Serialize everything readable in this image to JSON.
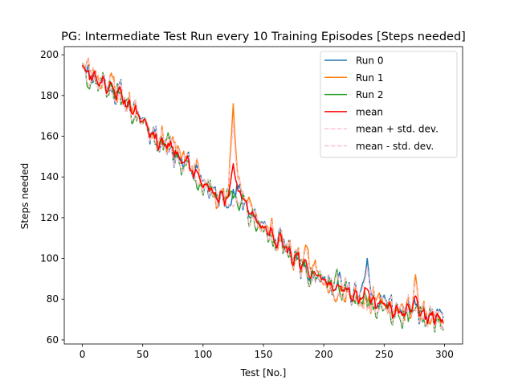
{
  "chart_data": {
    "type": "line",
    "title": "PG: Intermediate Test Run every 10 Training Episodes [Steps needed]",
    "xlabel": "Test [No.]",
    "ylabel": "Steps needed",
    "xlim": [
      -15,
      315
    ],
    "ylim": [
      58,
      204
    ],
    "xticks": [
      0,
      50,
      100,
      150,
      200,
      250,
      300
    ],
    "yticks": [
      60,
      80,
      100,
      120,
      140,
      160,
      180,
      200
    ],
    "legend_position": "top-right",
    "grid": false,
    "series": [
      {
        "name": "Run 0",
        "color": "#1f77b4",
        "style": "solid",
        "seed": 11,
        "offset": 0,
        "values_at_x": {
          "x": [
            0,
            50,
            100,
            150,
            200,
            236,
            250,
            300
          ],
          "y": [
            195,
            169,
            138,
            117,
            90,
            100,
            82,
            71
          ]
        }
      },
      {
        "name": "Run 1",
        "color": "#ff7f0e",
        "style": "solid",
        "seed": 23,
        "offset": 1,
        "values_at_x": {
          "x": [
            0,
            50,
            100,
            125,
            150,
            200,
            250,
            276,
            300
          ],
          "y": [
            194,
            167,
            135,
            176,
            115,
            87,
            77,
            92,
            68
          ]
        }
      },
      {
        "name": "Run 2",
        "color": "#2ca02c",
        "style": "solid",
        "seed": 37,
        "offset": -1,
        "values_at_x": {
          "x": [
            0,
            50,
            100,
            150,
            200,
            250,
            300
          ],
          "y": [
            196,
            166,
            131,
            113,
            91,
            75,
            65
          ]
        }
      },
      {
        "name": "mean",
        "color": "#ff0000",
        "style": "solid",
        "role": "mean"
      },
      {
        "name": "mean + std. dev.",
        "color": "#ffc0cb",
        "style": "dashed",
        "role": "upper"
      },
      {
        "name": "mean - std. dev.",
        "color": "#ffc0cb",
        "style": "dashed",
        "role": "lower"
      }
    ],
    "trend": {
      "x": [
        0,
        25,
        50,
        75,
        100,
        115,
        125,
        140,
        150,
        175,
        200,
        225,
        250,
        275,
        300
      ],
      "y": [
        194,
        184,
        168,
        153,
        139,
        127,
        134,
        123,
        116,
        101,
        90,
        82,
        76,
        73,
        69
      ]
    },
    "n_points": 300
  }
}
